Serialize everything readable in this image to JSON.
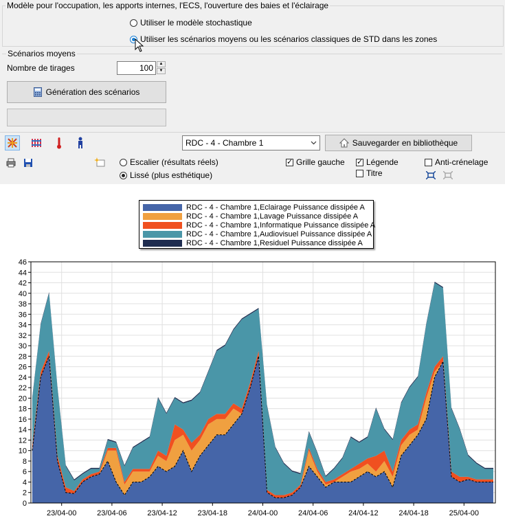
{
  "group_model": {
    "title": "Modèle pour l'occupation, les apports internes, l'ECS, l'ouverture des baies et l'éclairage",
    "option_stochastic": "Utiliser le modèle stochastique",
    "option_average": "Utiliser les scénarios moyens ou les scénarios classiques de STD dans les zones",
    "selected": "option_average"
  },
  "group_average": {
    "title": "Scénarios moyens",
    "draws_label": "Nombre de tirages",
    "draws_value": "100",
    "generate_label": "Génération des scénarios"
  },
  "toolbar": {
    "zone_select": "RDC - 4 - Chambre 1",
    "save_library_label": "Sauvegarder en bibliothèque"
  },
  "options": {
    "staircase_label": "Escalier (résultats réels)",
    "smooth_label": "Lissé (plus esthétique)",
    "display_mode": "smooth",
    "left_grid_label": "Grille gauche",
    "left_grid_checked": true,
    "legend_label": "Légende",
    "legend_checked": true,
    "title_label": "Titre",
    "title_checked": false,
    "antialias_label": "Anti-crénelage",
    "antialias_checked": false
  },
  "chart_data": {
    "type": "area",
    "stacked": true,
    "legend_position": "top-center",
    "grid": true,
    "ylim": [
      0,
      46
    ],
    "y_ticks": [
      0,
      2,
      4,
      6,
      8,
      10,
      12,
      14,
      16,
      18,
      20,
      22,
      24,
      26,
      28,
      30,
      32,
      34,
      36,
      38,
      40,
      42,
      44,
      46
    ],
    "x_tick_labels": [
      "23/04-00",
      "23/04-06",
      "23/04-12",
      "23/04-18",
      "24/04-00",
      "24/04-06",
      "24/04-12",
      "24/04-18",
      "25/04-00"
    ],
    "x_hours": [
      0,
      1,
      2,
      3,
      4,
      5,
      6,
      7,
      8,
      9,
      10,
      11,
      12,
      13,
      14,
      15,
      16,
      17,
      18,
      19,
      20,
      21,
      22,
      23,
      24,
      25,
      26,
      27,
      28,
      29,
      30,
      31,
      32,
      33,
      34,
      35,
      36,
      37,
      38,
      39,
      40,
      41,
      42,
      43,
      44,
      45,
      46,
      47,
      48,
      49,
      50,
      51,
      52,
      53,
      54,
      55
    ],
    "series": [
      {
        "name": "RDC - 4 - Chambre 1,Eclairage Puissance dissipée A",
        "color": "#4565a8",
        "values": [
          10,
          24,
          28,
          8,
          2,
          1.8,
          4,
          5,
          5.5,
          8,
          4,
          1.5,
          4,
          4,
          5,
          7,
          6,
          7,
          10,
          6,
          9,
          11,
          13,
          13,
          15,
          17,
          22,
          28,
          2,
          1,
          1,
          1.5,
          3,
          7,
          5,
          3,
          4,
          4,
          4,
          5,
          6,
          5,
          6,
          3,
          9,
          11,
          13,
          16,
          24,
          27,
          5,
          4,
          4.5,
          4,
          4,
          4
        ]
      },
      {
        "name": "RDC - 4 - Chambre 1,Lavage Puissance dissipée A",
        "color": "#f0a040",
        "values": [
          0,
          0,
          0,
          0,
          0,
          0,
          0,
          0,
          0,
          2,
          6,
          2,
          2,
          2,
          1,
          2,
          2,
          5,
          3,
          4,
          3,
          4,
          3,
          3,
          3,
          0,
          0,
          0,
          0,
          0,
          0,
          0,
          0,
          3,
          1,
          0.5,
          0,
          1,
          2,
          1.5,
          1.5,
          1,
          2,
          2,
          2,
          2,
          1,
          4,
          1,
          0,
          0,
          0,
          0,
          0,
          0,
          0
        ]
      },
      {
        "name": "RDC - 4 - Chambre 1,Informatique Puissance dissipée A",
        "color": "#f05020",
        "values": [
          1,
          1,
          1,
          1,
          1,
          0.5,
          0.5,
          0.5,
          0.5,
          0.5,
          0.5,
          0.5,
          0.5,
          0.5,
          0.5,
          1,
          1,
          3,
          1,
          1.5,
          1,
          1,
          1,
          1,
          1,
          1,
          1,
          1,
          0.5,
          0.5,
          0.5,
          0.5,
          0.5,
          0.5,
          0.5,
          0.5,
          0.5,
          0.5,
          0.5,
          1,
          1,
          3,
          2,
          1,
          1,
          1,
          1,
          1,
          1,
          1,
          1,
          1,
          0.5,
          0.5,
          0.5,
          0.5
        ]
      },
      {
        "name": "RDC - 4 - Chambre 1,Audiovisuel Puissance dissipée A",
        "color": "#4a96a8",
        "values": [
          9,
          9,
          11,
          13,
          4,
          2,
          1,
          1,
          0.5,
          1.5,
          1,
          3,
          4,
          5,
          6,
          10,
          8,
          5,
          5,
          8,
          8,
          9,
          12,
          13,
          14,
          17,
          13,
          8,
          16,
          9,
          6,
          4,
          2,
          3,
          3,
          1,
          2,
          3,
          6,
          4,
          4,
          9,
          4,
          6,
          7,
          8,
          9,
          13,
          16,
          13,
          12,
          9,
          4,
          3,
          2,
          2
        ]
      },
      {
        "name": "RDC - 4 - Chambre 1,Residuel Puissance dissipée A",
        "color": "#1f2d50",
        "values": [
          0.2,
          0.2,
          0.2,
          0.2,
          0.2,
          0.2,
          0.2,
          0.2,
          0.2,
          0.2,
          0.2,
          0.2,
          0.2,
          0.2,
          0.2,
          0.2,
          0.2,
          0.2,
          0.2,
          0.2,
          0.2,
          0.2,
          0.2,
          0.2,
          0.2,
          0.2,
          0.2,
          0.2,
          0.2,
          0.2,
          0.2,
          0.2,
          0.2,
          0.2,
          0.2,
          0.2,
          0.2,
          0.2,
          0.2,
          0.2,
          0.2,
          0.2,
          0.2,
          0.2,
          0.2,
          0.2,
          0.2,
          0.2,
          0.2,
          0.2,
          0.2,
          0.2,
          0.2,
          0.2,
          0.2,
          0.2
        ]
      }
    ]
  }
}
